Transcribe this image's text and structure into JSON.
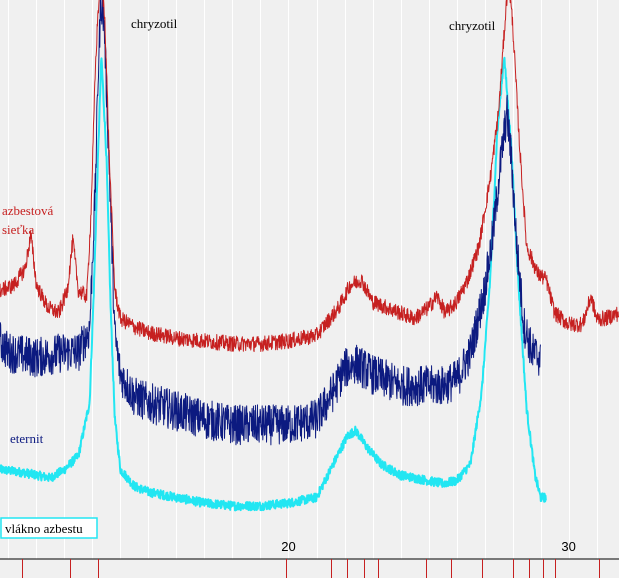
{
  "chart_data": {
    "type": "line",
    "title": "",
    "xlabel": "",
    "ylabel": "",
    "xlim": [
      9.7,
      31.8
    ],
    "ylim": [
      0,
      100
    ],
    "grid": "vertical",
    "x_ticks": [
      20,
      30
    ],
    "reference_marks": [
      10.5,
      12.2,
      13.2,
      19.9,
      21.5,
      22.1,
      22.7,
      23.2,
      24.9,
      25.8,
      26.9,
      28.0,
      28.6,
      29.1,
      29.5,
      31.1
    ],
    "peak_labels": [
      {
        "text": "chryzotil",
        "x": 14.6
      },
      {
        "text": "chryzotil",
        "x": 26.6
      }
    ],
    "series": [
      {
        "name": "azbestová sieťka",
        "color": "#c62020",
        "noise": 1.4,
        "points": [
          [
            9.7,
            48
          ],
          [
            10.2,
            49
          ],
          [
            10.6,
            52
          ],
          [
            10.8,
            58
          ],
          [
            11.0,
            49
          ],
          [
            11.4,
            45
          ],
          [
            11.8,
            44
          ],
          [
            12.1,
            48
          ],
          [
            12.3,
            57
          ],
          [
            12.5,
            48
          ],
          [
            12.8,
            47
          ],
          [
            12.95,
            62
          ],
          [
            13.1,
            87
          ],
          [
            13.2,
            98
          ],
          [
            13.32,
            104
          ],
          [
            13.45,
            96
          ],
          [
            13.6,
            72
          ],
          [
            13.8,
            48
          ],
          [
            14.0,
            43
          ],
          [
            14.5,
            41.5
          ],
          [
            15.0,
            40.5
          ],
          [
            16.0,
            39.5
          ],
          [
            17.0,
            39
          ],
          [
            18.0,
            38.5
          ],
          [
            19.0,
            38.5
          ],
          [
            20.0,
            39
          ],
          [
            21.0,
            40
          ],
          [
            21.8,
            45
          ],
          [
            22.2,
            49
          ],
          [
            22.6,
            50
          ],
          [
            23.0,
            46
          ],
          [
            23.5,
            45
          ],
          [
            24.0,
            44
          ],
          [
            24.5,
            43
          ],
          [
            25.0,
            45
          ],
          [
            25.3,
            47
          ],
          [
            25.6,
            44
          ],
          [
            26.0,
            46
          ],
          [
            26.4,
            50
          ],
          [
            26.8,
            56
          ],
          [
            27.2,
            68
          ],
          [
            27.5,
            80
          ],
          [
            27.7,
            94
          ],
          [
            27.85,
            104
          ],
          [
            28.0,
            96
          ],
          [
            28.25,
            74
          ],
          [
            28.5,
            56
          ],
          [
            28.9,
            51
          ],
          [
            29.2,
            50
          ],
          [
            29.5,
            44
          ],
          [
            30.0,
            42
          ],
          [
            30.5,
            42
          ],
          [
            30.8,
            47
          ],
          [
            31.0,
            43
          ],
          [
            31.3,
            43
          ],
          [
            31.8,
            44
          ]
        ]
      },
      {
        "name": "eternit",
        "color": "#0c1a80",
        "noise": 3.6,
        "points": [
          [
            9.7,
            39
          ],
          [
            10.0,
            37
          ],
          [
            11.0,
            36
          ],
          [
            12.0,
            37
          ],
          [
            12.5,
            37
          ],
          [
            12.9,
            41
          ],
          [
            13.1,
            66
          ],
          [
            13.2,
            86
          ],
          [
            13.3,
            100
          ],
          [
            13.42,
            96
          ],
          [
            13.6,
            70
          ],
          [
            13.8,
            40
          ],
          [
            14.0,
            33
          ],
          [
            14.5,
            29
          ],
          [
            15.0,
            28
          ],
          [
            16.0,
            26.5
          ],
          [
            17.0,
            25
          ],
          [
            18.0,
            24
          ],
          [
            19.0,
            24
          ],
          [
            20.0,
            24
          ],
          [
            21.0,
            25
          ],
          [
            21.6,
            30
          ],
          [
            22.0,
            34
          ],
          [
            22.4,
            35
          ],
          [
            23.0,
            33
          ],
          [
            24.0,
            31
          ],
          [
            25.0,
            31
          ],
          [
            25.5,
            31
          ],
          [
            26.0,
            32
          ],
          [
            26.5,
            37
          ],
          [
            27.0,
            48
          ],
          [
            27.3,
            58
          ],
          [
            27.55,
            70
          ],
          [
            27.8,
            80
          ],
          [
            27.95,
            72
          ],
          [
            28.15,
            56
          ],
          [
            28.4,
            42
          ],
          [
            28.7,
            37
          ],
          [
            29.0,
            36
          ]
        ]
      },
      {
        "name": "vlákno azbestu",
        "color": "#22e6f2",
        "noise": 0.8,
        "points": [
          [
            9.7,
            16
          ],
          [
            10.5,
            15.5
          ],
          [
            11.0,
            15
          ],
          [
            11.5,
            14.5
          ],
          [
            12.0,
            16
          ],
          [
            12.5,
            18.5
          ],
          [
            12.9,
            28
          ],
          [
            13.05,
            48
          ],
          [
            13.2,
            72
          ],
          [
            13.32,
            90
          ],
          [
            13.5,
            72
          ],
          [
            13.65,
            45
          ],
          [
            13.8,
            25
          ],
          [
            14.0,
            16
          ],
          [
            14.5,
            13
          ],
          [
            15.0,
            12
          ],
          [
            16.0,
            11
          ],
          [
            17.0,
            10
          ],
          [
            18.0,
            9.5
          ],
          [
            19.0,
            9.5
          ],
          [
            20.0,
            10
          ],
          [
            21.0,
            11
          ],
          [
            21.6,
            17
          ],
          [
            22.1,
            22
          ],
          [
            22.4,
            23
          ],
          [
            22.8,
            20
          ],
          [
            23.3,
            17
          ],
          [
            24.0,
            15
          ],
          [
            25.0,
            14
          ],
          [
            25.5,
            13.5
          ],
          [
            26.0,
            14
          ],
          [
            26.5,
            17
          ],
          [
            26.9,
            30
          ],
          [
            27.2,
            50
          ],
          [
            27.45,
            76
          ],
          [
            27.7,
            90
          ],
          [
            27.95,
            74
          ],
          [
            28.2,
            50
          ],
          [
            28.5,
            27
          ],
          [
            28.8,
            15
          ],
          [
            29.0,
            11
          ],
          [
            29.2,
            11
          ]
        ]
      }
    ],
    "legend_labels": {
      "red_line1": "azbestová",
      "red_line2": "sieťka",
      "blue": "eternit",
      "cyan": "vlákno azbestu"
    }
  }
}
